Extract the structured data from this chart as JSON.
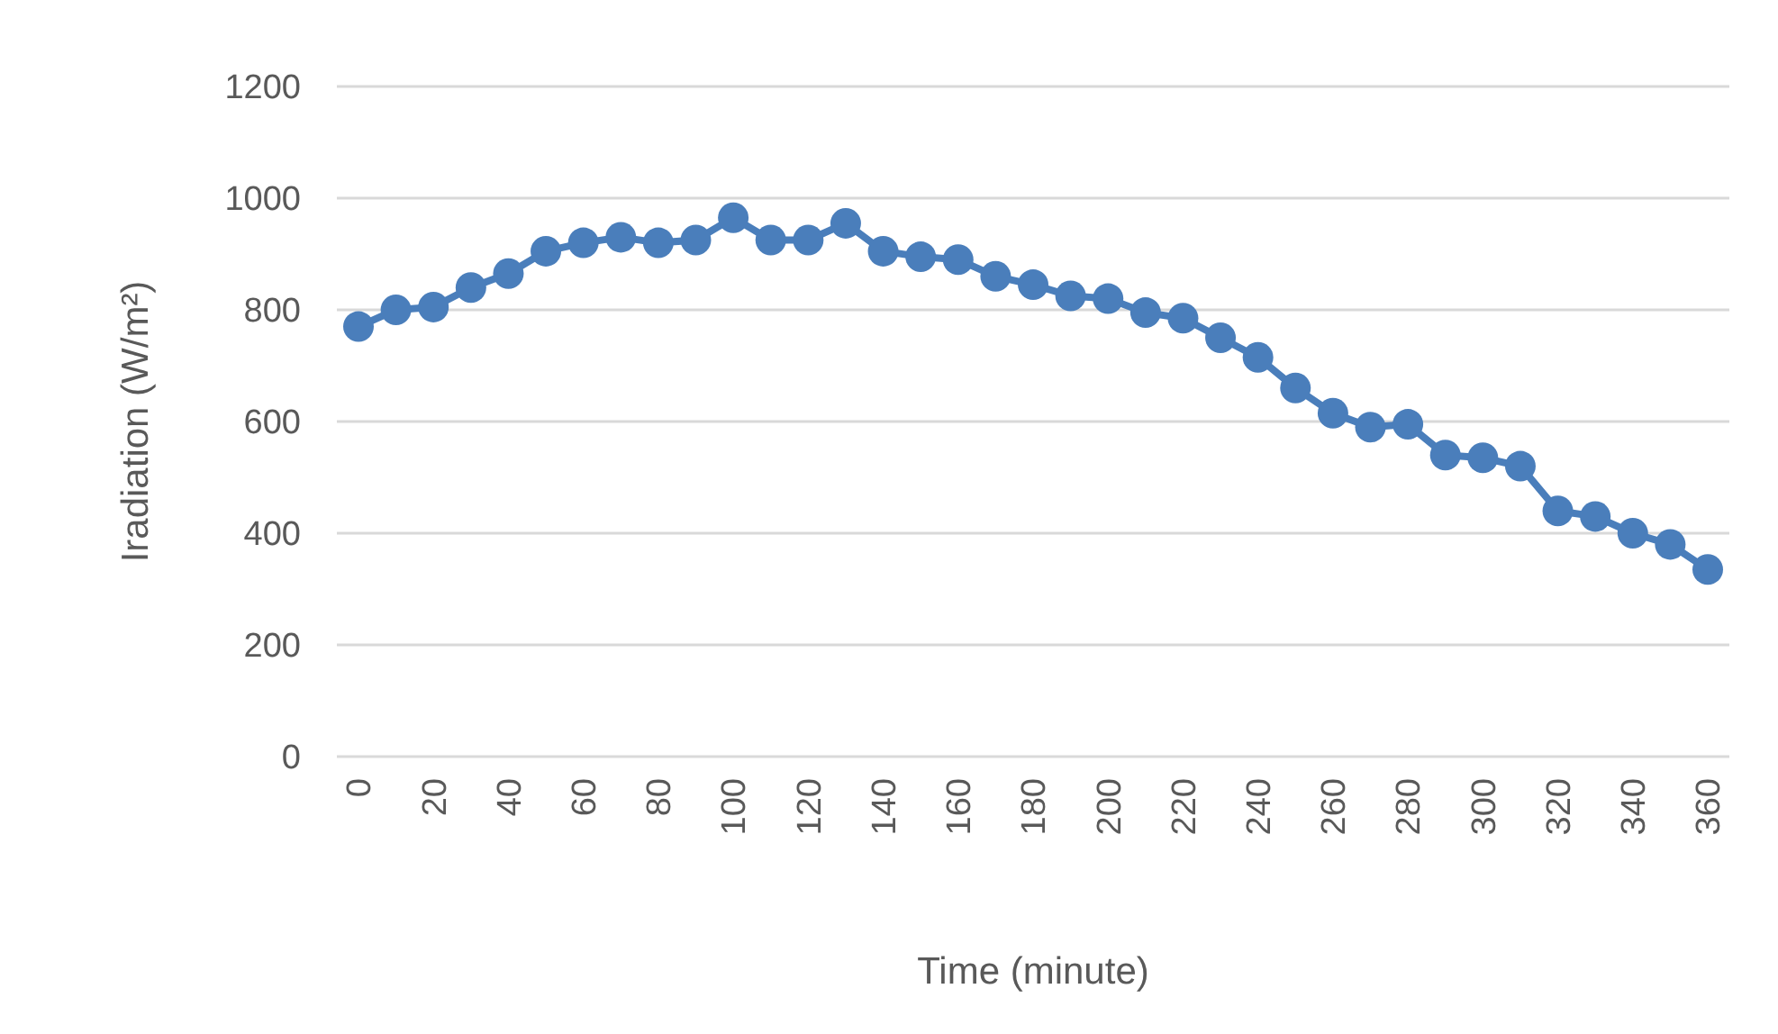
{
  "chart_data": {
    "type": "line",
    "xlabel": "Time (minute)",
    "ylabel": "Iradiation (W/m²)",
    "categories": [
      "0",
      null,
      "20",
      null,
      "40",
      null,
      "60",
      null,
      "80",
      null,
      "100",
      null,
      "120",
      null,
      "140",
      null,
      "160",
      null,
      "180",
      null,
      "200",
      null,
      "220",
      null,
      "240",
      null,
      "260",
      null,
      "280",
      null,
      "300",
      null,
      "320",
      null,
      "340",
      null,
      "360"
    ],
    "series": [
      {
        "color": "#4a7ebb",
        "values": [
          770,
          800,
          805,
          840,
          865,
          905,
          920,
          930,
          920,
          925,
          965,
          925,
          925,
          955,
          905,
          895,
          890,
          860,
          845,
          825,
          820,
          795,
          785,
          750,
          715,
          660,
          615,
          590,
          595,
          540,
          535,
          520,
          440,
          430,
          400,
          380,
          335
        ]
      }
    ],
    "ylim": [
      0,
      1200
    ],
    "yticks": [
      0,
      200,
      400,
      600,
      800,
      1000,
      1200
    ],
    "grid": "y",
    "marker": "circle",
    "line_style": "solid"
  }
}
